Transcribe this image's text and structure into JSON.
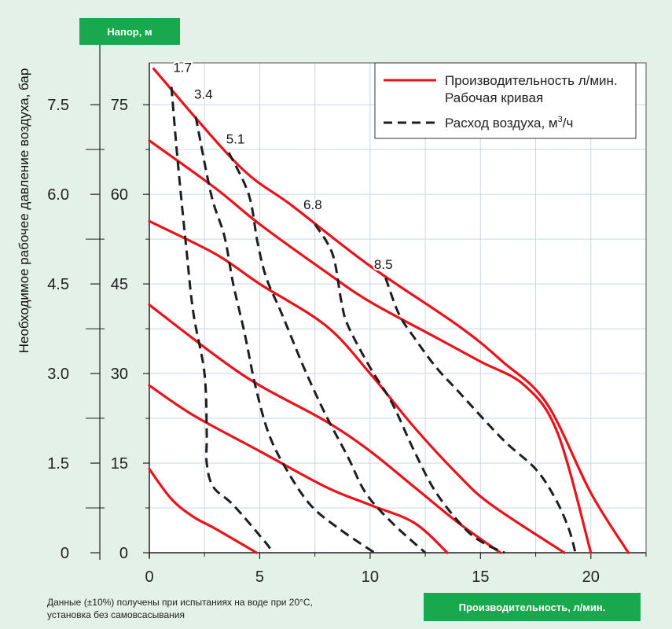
{
  "labels": {
    "head_tag": "Напор, м",
    "flow_tag": "Производительность, л/мин.",
    "note_line1": "Данные (±10%) получены при испытаниях на воде при 20°C,",
    "note_line2": "установка без самовсасывания"
  },
  "colors": {
    "background": "#e3f1e8",
    "plot_bg": "#ffffff",
    "grid": "#c8d8e6",
    "performance": "#e8141b",
    "air": "#1e1e1e",
    "tag": "#1aa84f"
  },
  "chart_data": {
    "type": "line",
    "xlabel": "Производительность, л/мин.",
    "ylabel": "Напор, м",
    "y2label": "Необходимое рабочее давление воздуха, бар",
    "xlim": [
      0,
      22.5
    ],
    "ylim": [
      0,
      82
    ],
    "grid": true,
    "legend_position": "top-right",
    "x_ticks": [
      "0",
      "5",
      "10",
      "15",
      "20"
    ],
    "x_tick_values": [
      0,
      5,
      10,
      15,
      20
    ],
    "y_ticks": [
      "0",
      "15",
      "30",
      "45",
      "60",
      "75"
    ],
    "y_tick_values": [
      0,
      15,
      30,
      45,
      60,
      75
    ],
    "y2_ticks": [
      "0",
      "1.5",
      "3.0",
      "4.5",
      "6.0",
      "7.5"
    ],
    "y2_tick_values": [
      0,
      15,
      30,
      45,
      60,
      75
    ],
    "legend": [
      {
        "line1": "Производительность л/мин.",
        "line2": "Рабочая кривая",
        "style": "solid"
      },
      {
        "line1": "Расход воздуха, м",
        "sup": "3",
        "line3": "/ч",
        "style": "dashed"
      }
    ],
    "performance_curves": [
      {
        "points": [
          [
            0.2,
            81
          ],
          [
            4,
            65
          ],
          [
            6.5,
            58
          ],
          [
            10,
            48
          ],
          [
            14,
            38
          ],
          [
            16,
            32
          ],
          [
            18,
            25
          ],
          [
            20,
            10
          ],
          [
            21.7,
            0
          ]
        ]
      },
      {
        "points": [
          [
            0,
            69
          ],
          [
            3,
            61
          ],
          [
            5,
            55
          ],
          [
            8,
            47
          ],
          [
            10,
            42
          ],
          [
            13,
            36
          ],
          [
            15,
            32
          ],
          [
            17,
            28
          ],
          [
            18.5,
            20
          ],
          [
            20,
            0
          ]
        ]
      },
      {
        "points": [
          [
            0,
            55.5
          ],
          [
            3,
            50
          ],
          [
            5,
            45
          ],
          [
            8,
            38
          ],
          [
            10,
            30
          ],
          [
            12,
            21
          ],
          [
            14,
            13
          ],
          [
            15.5,
            8
          ],
          [
            18.8,
            0
          ]
        ]
      },
      {
        "points": [
          [
            0,
            41.5
          ],
          [
            3,
            33
          ],
          [
            5,
            28
          ],
          [
            8,
            22
          ],
          [
            10,
            17
          ],
          [
            12,
            11
          ],
          [
            14,
            5
          ],
          [
            15.9,
            0
          ]
        ]
      },
      {
        "points": [
          [
            0,
            28
          ],
          [
            2,
            23
          ],
          [
            5,
            17
          ],
          [
            8,
            11
          ],
          [
            10,
            8
          ],
          [
            12,
            5
          ],
          [
            13.5,
            0
          ]
        ]
      },
      {
        "points": [
          [
            0,
            14
          ],
          [
            1,
            9
          ],
          [
            2,
            6
          ],
          [
            3,
            4
          ],
          [
            4.86,
            0
          ]
        ]
      }
    ],
    "air_curves": [
      {
        "label": "1.7",
        "label_at": [
          1.5,
          80.5
        ],
        "points": [
          [
            1.0,
            78
          ],
          [
            1.3,
            65
          ],
          [
            1.7,
            50
          ],
          [
            2.0,
            40
          ],
          [
            2.5,
            30
          ],
          [
            2.6,
            20
          ],
          [
            2.6,
            15
          ],
          [
            2.9,
            11
          ],
          [
            3.8,
            8
          ],
          [
            5.2,
            2
          ],
          [
            5.6,
            0
          ]
        ]
      },
      {
        "label": "3.4",
        "label_at": [
          2.45,
          76
        ],
        "points": [
          [
            2.1,
            73
          ],
          [
            2.8,
            60
          ],
          [
            3.4,
            53
          ],
          [
            3.8,
            45
          ],
          [
            4.3,
            37
          ],
          [
            4.8,
            28
          ],
          [
            5.4,
            20
          ],
          [
            6.2,
            14
          ],
          [
            7.3,
            8
          ],
          [
            8.6,
            4
          ],
          [
            10.2,
            0
          ]
        ]
      },
      {
        "label": "5.1",
        "label_at": [
          3.9,
          68.5
        ],
        "points": [
          [
            3.6,
            67
          ],
          [
            4.5,
            60
          ],
          [
            4.9,
            52
          ],
          [
            5.3,
            46
          ],
          [
            6,
            40
          ],
          [
            7,
            31
          ],
          [
            8,
            23
          ],
          [
            9,
            16
          ],
          [
            9.8,
            10
          ],
          [
            11,
            5
          ],
          [
            12.5,
            0
          ]
        ]
      },
      {
        "label": "6.8",
        "label_at": [
          7.4,
          57.5
        ],
        "points": [
          [
            7.5,
            55
          ],
          [
            8.3,
            50
          ],
          [
            8.7,
            42
          ],
          [
            9,
            38
          ],
          [
            10,
            31
          ],
          [
            11,
            25
          ],
          [
            12,
            17
          ],
          [
            13,
            10
          ],
          [
            14.3,
            4
          ],
          [
            15.2,
            1.5
          ],
          [
            16.1,
            0
          ]
        ]
      },
      {
        "label": "8.5",
        "label_at": [
          10.6,
          47.5
        ],
        "points": [
          [
            10.7,
            46
          ],
          [
            11.3,
            40
          ],
          [
            12,
            36
          ],
          [
            13,
            31
          ],
          [
            14,
            27
          ],
          [
            16,
            19
          ],
          [
            17.5,
            14
          ],
          [
            18.4,
            9
          ],
          [
            19,
            4
          ],
          [
            19.3,
            0
          ]
        ]
      }
    ]
  }
}
